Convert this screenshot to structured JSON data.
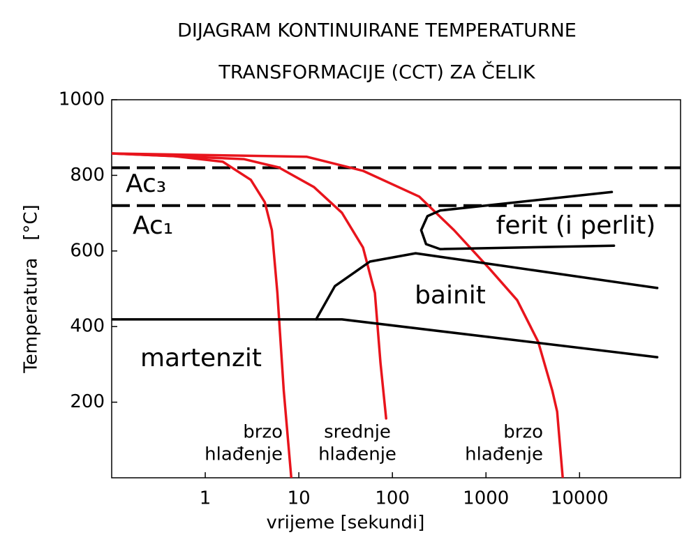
{
  "chart_data": {
    "type": "line",
    "title": [
      "DIJAGRAM KONTINUIRANE TEMPERATURNE",
      "TRANSFORMACIJE (CCT) ZA ČELIK"
    ],
    "xlabel": "vrijeme [sekundi]",
    "ylabel": "Temperatura   [°C]",
    "xscale": "log",
    "xlim": [
      0.1,
      120000
    ],
    "ylim": [
      0,
      1000
    ],
    "xticks": [
      1,
      10,
      100,
      1000,
      10000
    ],
    "yticks": [
      200,
      400,
      600,
      800,
      1000
    ],
    "reference_lines": [
      {
        "value": 820,
        "label": "Ac₃",
        "color": "#000000"
      },
      {
        "value": 720,
        "label": "Ac₁",
        "color": "#000000"
      }
    ],
    "series": [
      {
        "color": "#e8141c",
        "x": [
          0.1,
          0.46,
          1.54,
          3.07,
          4.33,
          5.15,
          5.9,
          6.9,
          8.3
        ],
        "values": [
          858,
          851,
          836,
          788,
          729,
          655,
          489,
          231,
          0
        ]
      },
      {
        "color": "#e8141c",
        "x": [
          0.1,
          2.58,
          6.1,
          14.5,
          28.9,
          48.5,
          65,
          74.6,
          85.7
        ],
        "values": [
          858,
          843,
          821,
          769,
          701,
          609,
          489,
          304,
          157
        ]
      },
      {
        "color": "#e8141c",
        "x": [
          0.1,
          12.2,
          48.5,
          193,
          456,
          1081,
          2153,
          3612,
          5105,
          5757,
          6607
        ],
        "values": [
          858,
          849,
          812,
          744,
          655,
          554,
          470,
          360,
          231,
          175,
          0
        ]
      },
      {
        "color": "#000000",
        "x": [
          0.1,
          28.9,
          67600
        ],
        "values": [
          419,
          419,
          319
        ]
      },
      {
        "color": "#000000",
        "x": [
          15.3,
          24.3,
          57.5,
          177,
          67600
        ],
        "values": [
          419,
          507,
          572,
          594,
          502
        ]
      },
      {
        "color": "#000000",
        "x": [
          22100,
          323,
          237,
          203,
          229,
          323,
          23300
        ],
        "values": [
          756,
          707,
          692,
          655,
          618,
          605,
          614
        ]
      }
    ],
    "annotations": [
      {
        "text": [
          "ferit (i perlit)"
        ]
      },
      {
        "text": [
          "bainit"
        ]
      },
      {
        "text": [
          "martenzit"
        ]
      },
      {
        "text": [
          "brzo",
          "hlađenje"
        ]
      },
      {
        "text": [
          "srednje",
          "hlađenje"
        ]
      },
      {
        "text": [
          "brzo",
          "hlađenje"
        ]
      }
    ]
  }
}
